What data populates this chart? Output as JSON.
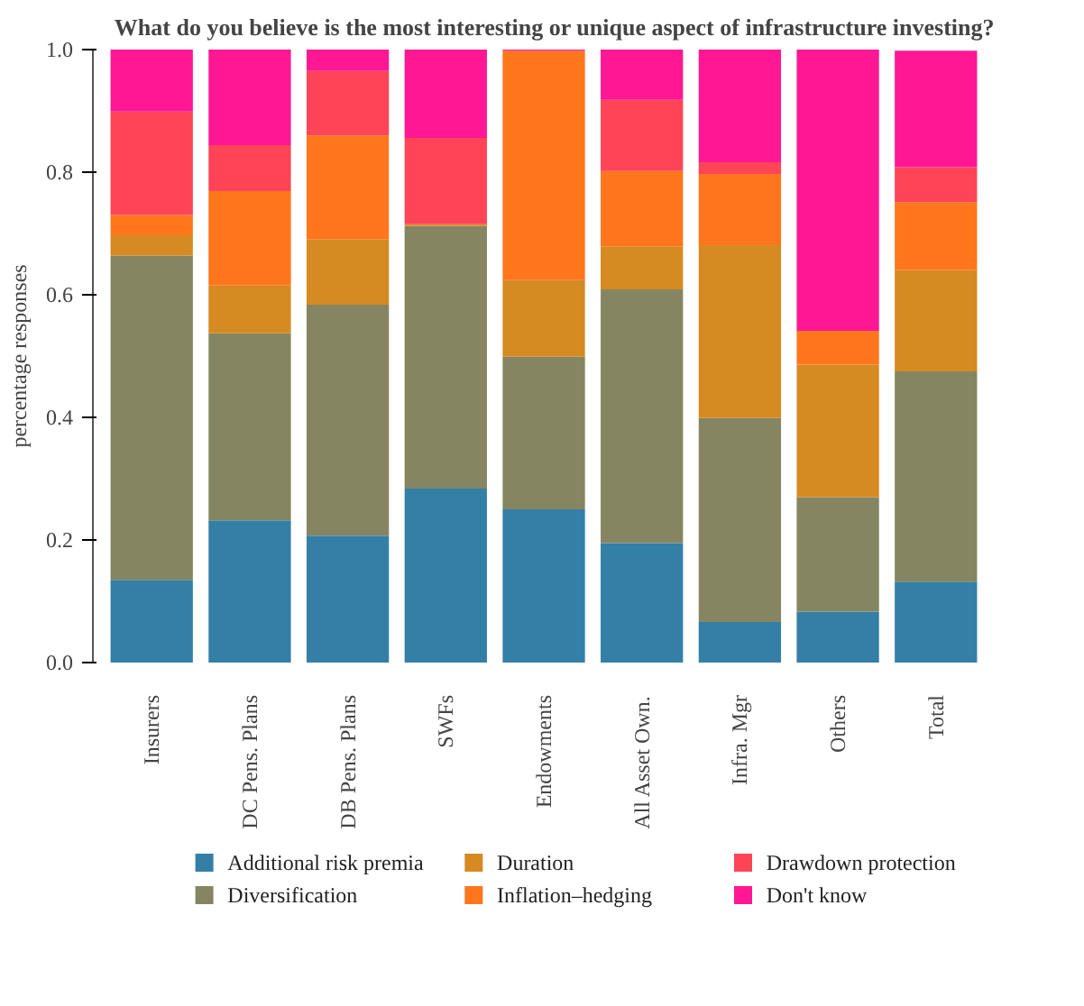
{
  "chart_data": {
    "type": "bar",
    "stacked": true,
    "title": "What do you believe is the most interesting or unique aspect of infrastructure investing?",
    "ylabel": "percentage responses",
    "categories": [
      "Insurers",
      "DC Pens. Plans",
      "DB Pens. Plans",
      "SWFs",
      "Endowments",
      "All Asset Own.",
      "Infra. Mgr",
      "Others",
      "Total"
    ],
    "series": [
      {
        "name": "Additional risk premia",
        "color": "#347fa6",
        "values": [
          0.135,
          0.232,
          0.207,
          0.284,
          0.25,
          0.195,
          0.066,
          0.083,
          0.132
        ]
      },
      {
        "name": "Diversification",
        "color": "#858661",
        "values": [
          0.529,
          0.305,
          0.377,
          0.428,
          0.249,
          0.414,
          0.333,
          0.187,
          0.343
        ]
      },
      {
        "name": "Duration",
        "color": "#d58a22",
        "values": [
          0.033,
          0.078,
          0.106,
          0.003,
          0.125,
          0.07,
          0.282,
          0.216,
          0.165
        ]
      },
      {
        "name": "Inflation–hedging",
        "color": "#ff761c",
        "values": [
          0.033,
          0.154,
          0.17,
          0.0,
          0.374,
          0.123,
          0.116,
          0.055,
          0.111
        ]
      },
      {
        "name": "Drawdown protection",
        "color": "#ff4458",
        "values": [
          0.169,
          0.075,
          0.105,
          0.141,
          0.0,
          0.116,
          0.019,
          0.0,
          0.057
        ]
      },
      {
        "name": "Don't know",
        "color": "#ff1793",
        "values": [
          0.101,
          0.156,
          0.035,
          0.145,
          0.002,
          0.082,
          0.184,
          0.459,
          0.19
        ]
      }
    ],
    "ylim": [
      0,
      1
    ],
    "yticks": [
      {
        "value": 0,
        "label": "0.0"
      },
      {
        "value": 0.2,
        "label": "0.2"
      },
      {
        "value": 0.4,
        "label": "0.4"
      },
      {
        "value": 0.6,
        "label": "0.6"
      },
      {
        "value": 0.8,
        "label": "0.8"
      },
      {
        "value": 1,
        "label": "1.0"
      }
    ],
    "grid": false,
    "legend": "bottom"
  }
}
